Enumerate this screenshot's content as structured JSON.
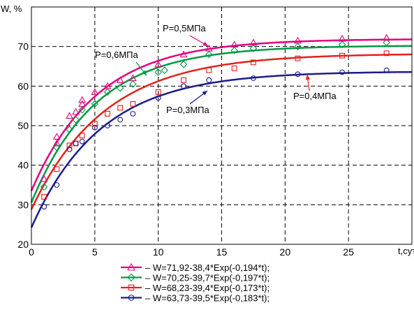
{
  "chart_data": {
    "type": "scatter",
    "ylabel": "W, %",
    "xlabel": "t,сут",
    "xlim": [
      0,
      30
    ],
    "ylim": [
      20,
      80
    ],
    "xticks": [
      0,
      5,
      10,
      15,
      20,
      25
    ],
    "yticks": [
      20,
      30,
      40,
      50,
      60,
      70
    ],
    "grid": true,
    "legend_position": "bottom",
    "annotations": [
      {
        "text": "P=0,5МПа",
        "series": 0
      },
      {
        "text": "P=0,6МПа",
        "series": 1
      },
      {
        "text": "P=0,4МПа",
        "series": 2
      },
      {
        "text": "P=0,3МПа",
        "series": 3
      }
    ],
    "series": [
      {
        "name": "– W=71,92-38,4*Exp(-0,194*t);",
        "color": "#e6007e",
        "marker": "triangle",
        "fit": {
          "a": 71.92,
          "b": 38.4,
          "k": 0.194
        },
        "x": [
          1,
          2,
          2,
          3,
          3.5,
          4,
          4,
          5,
          6,
          7,
          8,
          10,
          12,
          14,
          16,
          17.5,
          21,
          24.5,
          28
        ],
        "y": [
          36.5,
          45.5,
          47.2,
          52.5,
          53.5,
          55.5,
          56.5,
          58.5,
          60,
          61.5,
          62,
          65.5,
          68,
          69.5,
          70.5,
          71,
          71.5,
          72,
          72.2
        ]
      },
      {
        "name": "– W=70,25-39,7*Exp(-0,197*t);",
        "color": "#009a44",
        "marker": "diamond",
        "fit": {
          "a": 70.25,
          "b": 39.7,
          "k": 0.197
        },
        "x": [
          1,
          2,
          3,
          3.5,
          4,
          5,
          6,
          7,
          8,
          10,
          10.5,
          12,
          14,
          16,
          17.5,
          21,
          24.5,
          28
        ],
        "y": [
          34.5,
          44.5,
          49,
          51.5,
          54,
          55.5,
          58.5,
          59.5,
          60.5,
          63.5,
          64,
          65.5,
          68,
          69,
          69.5,
          70,
          70.5,
          71
        ]
      },
      {
        "name": "– W=68,23-39,4*Exp(-0,173*t);",
        "color": "#e2231a",
        "marker": "square",
        "fit": {
          "a": 68.23,
          "b": 39.4,
          "k": 0.173
        },
        "x": [
          1,
          2,
          3,
          3.5,
          4,
          5,
          6,
          7,
          8,
          10,
          12,
          14,
          16,
          17.5,
          21,
          24.5,
          28
        ],
        "y": [
          32,
          39,
          45,
          45.5,
          47.5,
          50.5,
          53,
          54.5,
          55.5,
          58.5,
          61.5,
          64,
          64.5,
          66,
          67,
          67.7,
          68.3
        ]
      },
      {
        "name": "– W=63,73-39,5*Exp(-0,183*t);",
        "color": "#1c1c8c",
        "marker": "circle",
        "fit": {
          "a": 63.73,
          "b": 39.5,
          "k": 0.183
        },
        "x": [
          1,
          2,
          3,
          3.5,
          4,
          5,
          6,
          7,
          8,
          10,
          12,
          14,
          17.5,
          21,
          24.5,
          28
        ],
        "y": [
          29.5,
          35,
          44,
          45.5,
          46,
          49.5,
          50,
          51.5,
          53,
          57,
          60,
          61.5,
          62,
          63,
          63.5,
          64
        ]
      }
    ]
  }
}
